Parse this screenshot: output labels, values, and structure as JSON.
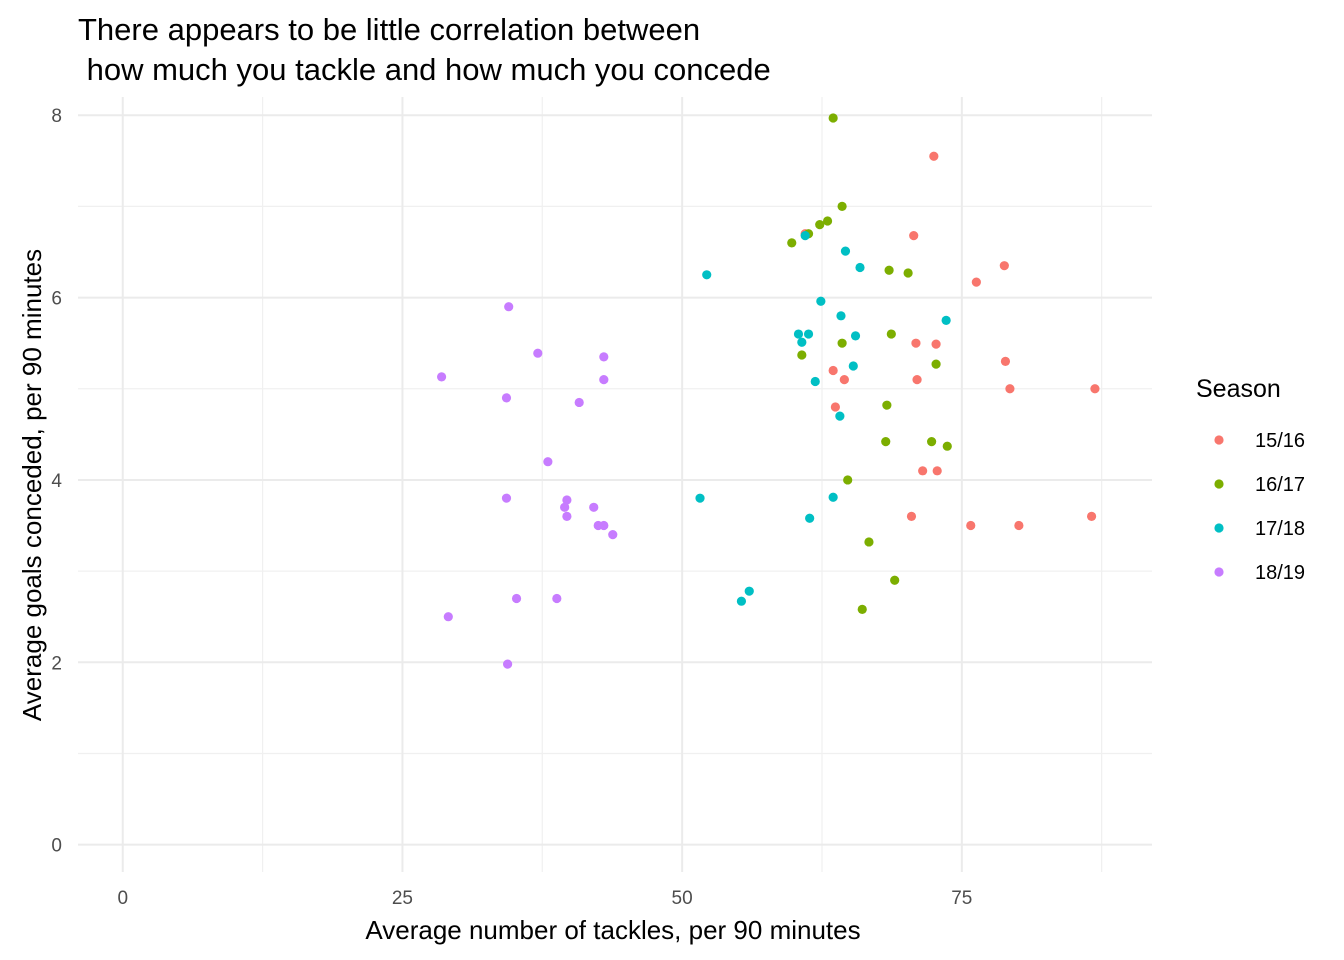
{
  "chart_data": {
    "type": "scatter",
    "title": "There appears to be little correlation between\n how much you tackle and how much you concede",
    "xlabel": "Average number of tackles, per 90 minutes",
    "ylabel": "Average goals conceded, per 90 minutes",
    "xlim": [
      -4,
      92
    ],
    "ylim": [
      -0.3,
      8.2
    ],
    "x_ticks": [
      0,
      25,
      50,
      75
    ],
    "x_tick_labels": [
      "0",
      "25",
      "50",
      "75"
    ],
    "y_ticks": [
      0,
      2,
      4,
      6,
      8
    ],
    "y_tick_labels": [
      "0",
      "2",
      "4",
      "6",
      "8"
    ],
    "grid": true,
    "legend": {
      "title": "Season",
      "position": "right"
    },
    "series": [
      {
        "name": "15/16",
        "color": "#F8766D",
        "points": [
          [
            72.5,
            7.55
          ],
          [
            70.7,
            6.68
          ],
          [
            61.0,
            6.7
          ],
          [
            78.8,
            6.35
          ],
          [
            76.3,
            6.17
          ],
          [
            70.9,
            5.5
          ],
          [
            72.7,
            5.49
          ],
          [
            78.9,
            5.3
          ],
          [
            79.3,
            5.0
          ],
          [
            86.9,
            5.0
          ],
          [
            63.5,
            5.2
          ],
          [
            64.5,
            5.1
          ],
          [
            71.0,
            5.1
          ],
          [
            63.7,
            4.8
          ],
          [
            71.5,
            4.1
          ],
          [
            72.8,
            4.1
          ],
          [
            70.5,
            3.6
          ],
          [
            75.8,
            3.5
          ],
          [
            80.1,
            3.5
          ],
          [
            86.6,
            3.6
          ]
        ]
      },
      {
        "name": "16/17",
        "color": "#7CAE00",
        "points": [
          [
            63.5,
            7.97
          ],
          [
            64.3,
            7.0
          ],
          [
            63.0,
            6.84
          ],
          [
            62.3,
            6.8
          ],
          [
            61.3,
            6.7
          ],
          [
            59.8,
            6.6
          ],
          [
            68.5,
            6.3
          ],
          [
            70.2,
            6.27
          ],
          [
            68.7,
            5.6
          ],
          [
            64.3,
            5.5
          ],
          [
            60.7,
            5.37
          ],
          [
            72.7,
            5.27
          ],
          [
            68.3,
            4.82
          ],
          [
            72.3,
            4.42
          ],
          [
            68.2,
            4.42
          ],
          [
            73.7,
            4.37
          ],
          [
            64.8,
            4.0
          ],
          [
            66.7,
            3.32
          ],
          [
            69.0,
            2.9
          ],
          [
            66.1,
            2.58
          ]
        ]
      },
      {
        "name": "17/18",
        "color": "#00BFC4",
        "points": [
          [
            61.0,
            6.68
          ],
          [
            64.6,
            6.51
          ],
          [
            65.9,
            6.33
          ],
          [
            52.2,
            6.25
          ],
          [
            62.4,
            5.96
          ],
          [
            64.2,
            5.8
          ],
          [
            73.6,
            5.75
          ],
          [
            60.4,
            5.6
          ],
          [
            61.3,
            5.6
          ],
          [
            65.5,
            5.58
          ],
          [
            60.7,
            5.51
          ],
          [
            65.3,
            5.25
          ],
          [
            61.9,
            5.08
          ],
          [
            64.1,
            4.7
          ],
          [
            63.5,
            3.81
          ],
          [
            51.6,
            3.8
          ],
          [
            61.4,
            3.58
          ],
          [
            56.0,
            2.78
          ],
          [
            55.3,
            2.67
          ]
        ]
      },
      {
        "name": "18/19",
        "color": "#C77CFF",
        "points": [
          [
            34.5,
            5.9
          ],
          [
            37.1,
            5.39
          ],
          [
            43.0,
            5.35
          ],
          [
            28.5,
            5.13
          ],
          [
            43.0,
            5.1
          ],
          [
            34.3,
            4.9
          ],
          [
            40.8,
            4.85
          ],
          [
            38.0,
            4.2
          ],
          [
            34.3,
            3.8
          ],
          [
            39.7,
            3.78
          ],
          [
            39.5,
            3.7
          ],
          [
            42.1,
            3.7
          ],
          [
            39.7,
            3.6
          ],
          [
            42.5,
            3.5
          ],
          [
            43.0,
            3.5
          ],
          [
            43.8,
            3.4
          ],
          [
            35.2,
            2.7
          ],
          [
            38.8,
            2.7
          ],
          [
            29.1,
            2.5
          ],
          [
            34.4,
            1.98
          ]
        ]
      }
    ]
  }
}
